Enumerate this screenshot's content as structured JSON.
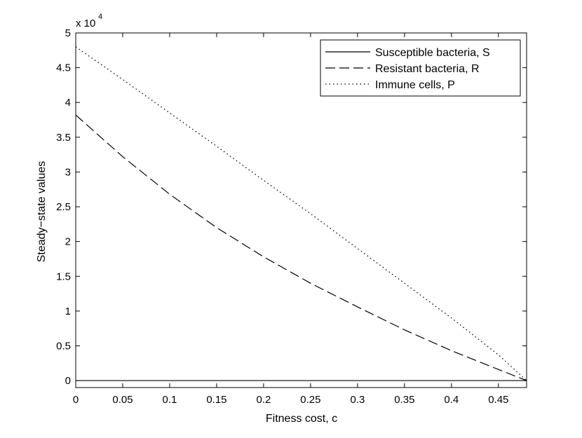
{
  "chart_data": {
    "type": "line",
    "title": "",
    "xlabel": "Fitness cost, c",
    "ylabel": "Steady−state values",
    "y_multiplier_base": "x 10",
    "y_multiplier_exp": "4",
    "xlim": [
      0,
      0.48
    ],
    "ylim": [
      -0.1,
      5
    ],
    "x_ticks": [
      0,
      0.05,
      0.1,
      0.15,
      0.2,
      0.25,
      0.3,
      0.35,
      0.4,
      0.45
    ],
    "x_tick_labels": [
      "0",
      "0.05",
      "0.1",
      "0.15",
      "0.2",
      "0.25",
      "0.3",
      "0.35",
      "0.4",
      "0.45"
    ],
    "y_ticks": [
      0,
      0.5,
      1,
      1.5,
      2,
      2.5,
      3,
      3.5,
      4,
      4.5,
      5
    ],
    "y_tick_labels": [
      "0",
      "0.5",
      "1",
      "1.5",
      "2",
      "2.5",
      "3",
      "3.5",
      "4",
      "4.5",
      "5"
    ],
    "grid": false,
    "legend_position": "top-right",
    "series": [
      {
        "name": "Susceptible bacteria, S",
        "style": "solid",
        "color": "#000000",
        "x": [
          0,
          0.05,
          0.1,
          0.15,
          0.2,
          0.25,
          0.3,
          0.35,
          0.4,
          0.45,
          0.48
        ],
        "y": [
          0,
          0,
          0,
          0,
          0,
          0,
          0,
          0,
          0,
          0,
          0
        ]
      },
      {
        "name": "Resistant bacteria, R",
        "style": "dashed",
        "color": "#000000",
        "x": [
          0,
          0.05,
          0.1,
          0.15,
          0.2,
          0.25,
          0.3,
          0.35,
          0.4,
          0.45,
          0.48
        ],
        "y": [
          3.82,
          3.22,
          2.68,
          2.2,
          1.78,
          1.4,
          1.06,
          0.73,
          0.43,
          0.16,
          0
        ]
      },
      {
        "name": "Immune cells, P",
        "style": "dotted",
        "color": "#000000",
        "x": [
          0,
          0.05,
          0.1,
          0.15,
          0.2,
          0.25,
          0.3,
          0.35,
          0.4,
          0.45,
          0.48
        ],
        "y": [
          4.8,
          4.33,
          3.85,
          3.37,
          2.88,
          2.4,
          1.9,
          1.4,
          0.9,
          0.37,
          0
        ]
      }
    ]
  }
}
